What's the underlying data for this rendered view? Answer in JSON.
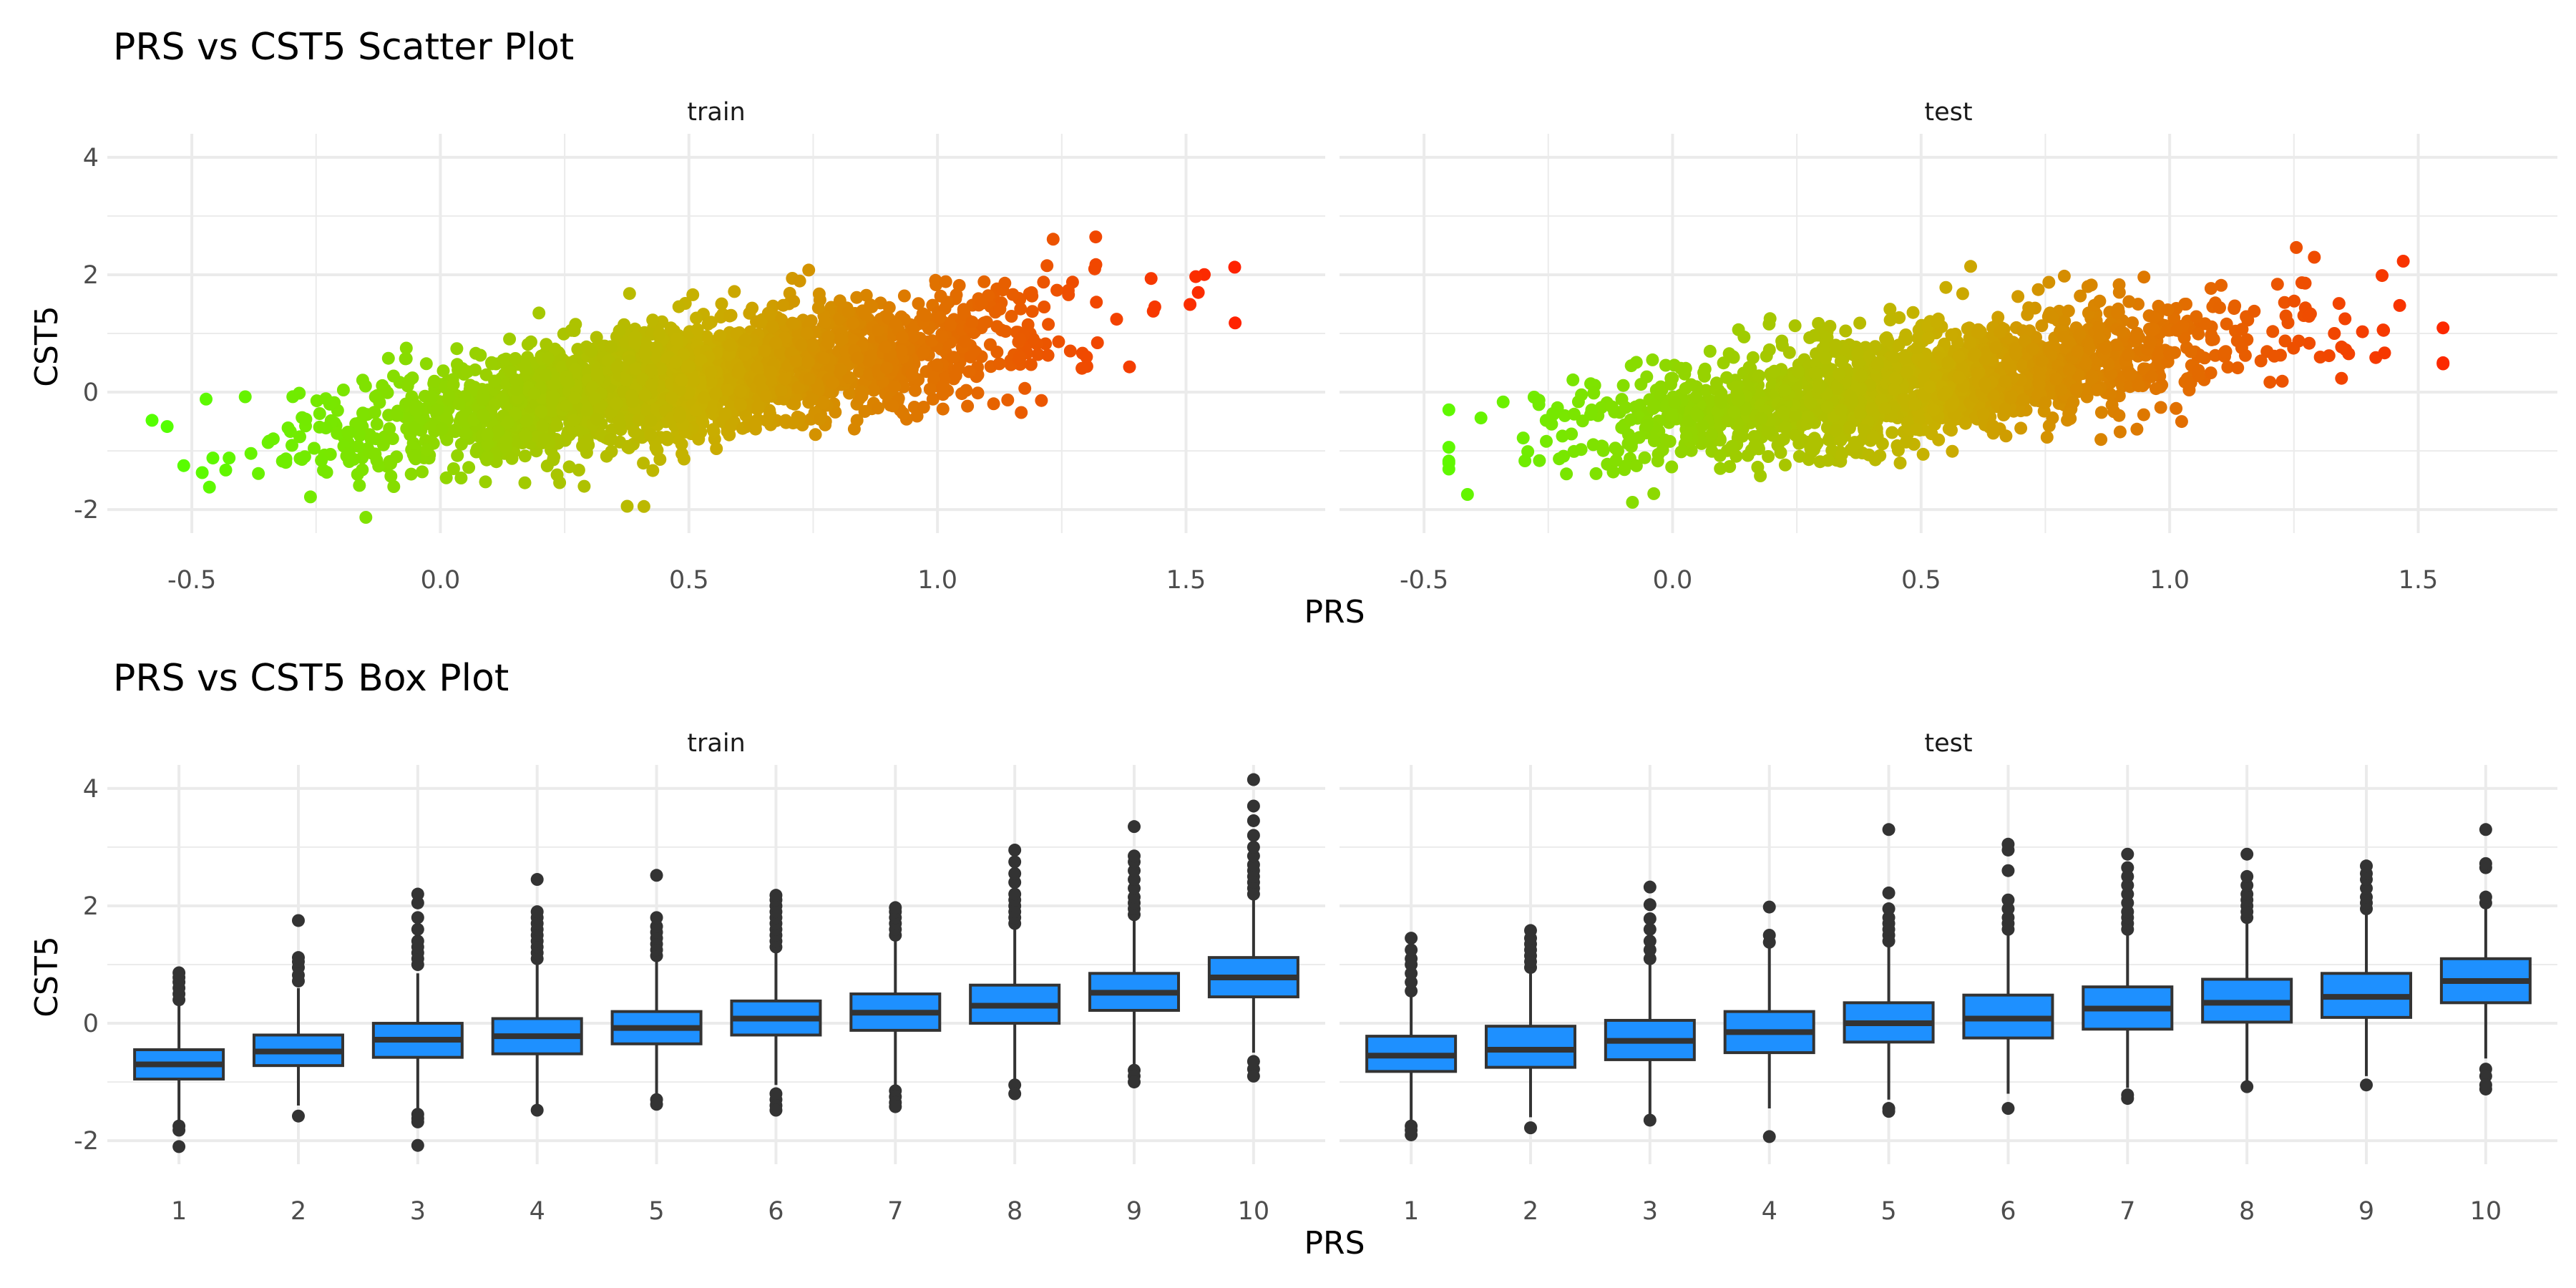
{
  "chart_data": [
    {
      "type": "scatter",
      "title": "PRS vs CST5 Scatter Plot",
      "xlabel": "PRS",
      "ylabel": "CST5",
      "facets": [
        "train",
        "test"
      ],
      "xlim": [
        -0.67,
        1.78
      ],
      "ylim": [
        -2.4,
        4.4
      ],
      "x_ticks": [
        "-0.5",
        "0.0",
        "0.5",
        "1.0",
        "1.5"
      ],
      "y_ticks": [
        "-2",
        "0",
        "2",
        "4"
      ],
      "color_scale": {
        "low": "#55ff00",
        "mid": "#c8b000",
        "high": "#ff2200",
        "variable": "PRS"
      },
      "grid": true,
      "point_cloud": {
        "train": {
          "x_range": [
            -0.58,
            1.63
          ],
          "trend_intercept": -0.45,
          "trend_slope": 1.3,
          "spread": 0.55
        },
        "test": {
          "x_range": [
            -0.45,
            1.55
          ],
          "trend_intercept": -0.45,
          "trend_slope": 1.2,
          "spread": 0.55
        }
      }
    },
    {
      "type": "box",
      "title": "PRS vs CST5 Box Plot",
      "xlabel": "PRS",
      "ylabel": "CST5",
      "facets": [
        "train",
        "test"
      ],
      "categories": [
        "1",
        "2",
        "3",
        "4",
        "5",
        "6",
        "7",
        "8",
        "9",
        "10"
      ],
      "ylim": [
        -2.4,
        4.4
      ],
      "y_ticks": [
        "-2",
        "0",
        "2",
        "4"
      ],
      "fill": "#1e90ff",
      "grid": true,
      "series": [
        {
          "facet": "train",
          "q1": [
            -0.95,
            -0.72,
            -0.58,
            -0.52,
            -0.35,
            -0.2,
            -0.12,
            0.0,
            0.22,
            0.45
          ],
          "median": [
            -0.7,
            -0.48,
            -0.28,
            -0.22,
            -0.08,
            0.08,
            0.18,
            0.3,
            0.52,
            0.78
          ],
          "q3": [
            -0.45,
            -0.2,
            0.0,
            0.08,
            0.2,
            0.38,
            0.5,
            0.65,
            0.85,
            1.12
          ],
          "whisker_low": [
            -1.7,
            -1.4,
            -1.45,
            -1.42,
            -1.2,
            -1.05,
            -1.05,
            -0.95,
            -0.7,
            -0.5
          ],
          "whisker_high": [
            0.3,
            0.6,
            0.85,
            1.0,
            1.05,
            1.2,
            1.4,
            1.6,
            1.75,
            2.1
          ],
          "outliers_low": [
            [
              -1.75,
              -1.82,
              -2.1
            ],
            [
              -1.58
            ],
            [
              -1.55,
              -1.62,
              -1.68,
              -2.08
            ],
            [
              -1.48
            ],
            [
              -1.3,
              -1.38
            ],
            [
              -1.2,
              -1.3,
              -1.4,
              -1.48
            ],
            [
              -1.15,
              -1.25,
              -1.35,
              -1.42
            ],
            [
              -1.05,
              -1.2
            ],
            [
              -0.8,
              -0.9,
              -1.0
            ],
            [
              -0.65,
              -0.78,
              -0.9
            ]
          ],
          "outliers_high": [
            [
              0.4,
              0.5,
              0.6,
              0.7,
              0.78,
              0.86
            ],
            [
              0.72,
              0.82,
              0.95,
              1.05,
              1.12,
              1.75
            ],
            [
              1.0,
              1.1,
              1.2,
              1.3,
              1.4,
              1.6,
              1.8,
              2.05,
              2.2
            ],
            [
              1.1,
              1.2,
              1.3,
              1.4,
              1.5,
              1.6,
              1.7,
              1.8,
              1.9,
              2.45
            ],
            [
              1.15,
              1.25,
              1.35,
              1.45,
              1.55,
              1.65,
              1.8,
              2.52
            ],
            [
              1.3,
              1.4,
              1.5,
              1.6,
              1.7,
              1.8,
              1.9,
              2.0,
              2.1,
              2.18
            ],
            [
              1.5,
              1.6,
              1.7,
              1.8,
              1.9,
              1.97
            ],
            [
              1.7,
              1.8,
              1.9,
              2.0,
              2.1,
              2.2,
              2.4,
              2.55,
              2.75,
              2.95
            ],
            [
              1.85,
              1.95,
              2.05,
              2.15,
              2.3,
              2.45,
              2.6,
              2.75,
              2.85,
              3.35
            ],
            [
              2.2,
              2.3,
              2.4,
              2.5,
              2.6,
              2.7,
              2.85,
              3.0,
              3.2,
              3.45,
              3.7,
              4.15
            ]
          ]
        },
        {
          "facet": "test",
          "q1": [
            -0.82,
            -0.75,
            -0.62,
            -0.5,
            -0.32,
            -0.25,
            -0.1,
            0.02,
            0.1,
            0.35
          ],
          "median": [
            -0.55,
            -0.45,
            -0.3,
            -0.15,
            0.0,
            0.08,
            0.25,
            0.35,
            0.45,
            0.72
          ],
          "q3": [
            -0.22,
            -0.05,
            0.05,
            0.2,
            0.35,
            0.48,
            0.62,
            0.75,
            0.85,
            1.1
          ],
          "whisker_low": [
            -1.7,
            -1.6,
            -1.6,
            -1.45,
            -1.3,
            -1.2,
            -1.1,
            -1.0,
            -0.9,
            -0.6
          ],
          "whisker_high": [
            0.5,
            0.9,
            1.0,
            1.3,
            1.3,
            1.5,
            1.5,
            1.7,
            1.9,
            2.2
          ],
          "outliers_low": [
            [
              -1.75,
              -1.82,
              -1.9
            ],
            [
              -1.78
            ],
            [
              -1.65
            ],
            [
              -1.93
            ],
            [
              -1.45,
              -1.5
            ],
            [
              -1.45
            ],
            [
              -1.22,
              -1.28
            ],
            [
              -1.08
            ],
            [
              -1.05
            ],
            [
              -0.78,
              -0.9,
              -1.05,
              -1.12
            ]
          ],
          "outliers_high": [
            [
              0.55,
              0.7,
              0.85,
              1.0,
              1.1,
              1.25,
              1.45
            ],
            [
              0.95,
              1.05,
              1.15,
              1.25,
              1.35,
              1.45,
              1.58
            ],
            [
              1.1,
              1.25,
              1.4,
              1.6,
              1.78,
              2.02,
              2.32
            ],
            [
              1.38,
              1.5,
              1.98
            ],
            [
              1.4,
              1.5,
              1.6,
              1.7,
              1.8,
              1.95,
              2.22,
              3.3
            ],
            [
              1.6,
              1.7,
              1.8,
              1.95,
              2.1,
              2.6,
              2.95,
              3.05
            ],
            [
              1.6,
              1.7,
              1.8,
              1.9,
              2.05,
              2.2,
              2.35,
              2.5,
              2.65,
              2.88
            ],
            [
              1.8,
              1.9,
              2.0,
              2.1,
              2.2,
              2.35,
              2.5,
              2.88
            ],
            [
              1.95,
              2.05,
              2.15,
              2.3,
              2.45,
              2.55,
              2.68
            ],
            [
              2.05,
              2.15,
              2.65,
              2.72,
              3.3
            ]
          ]
        }
      ]
    }
  ]
}
